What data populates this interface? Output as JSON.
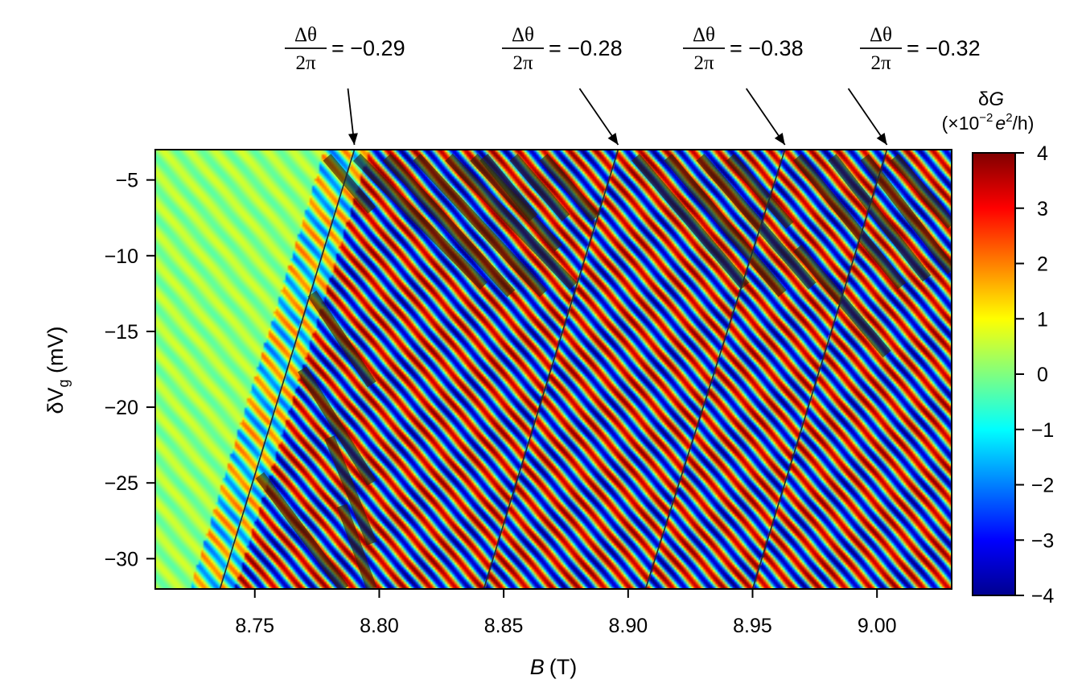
{
  "chart_data": {
    "type": "heatmap",
    "title": "",
    "xlabel_var": "B",
    "xlabel_unit": "(T)",
    "ylabel_prefix": "δV",
    "ylabel_sub": "g",
    "ylabel_unit": " (mV)",
    "xlim": [
      8.71,
      9.03
    ],
    "ylim": [
      -32,
      -3
    ],
    "x_ticks": [
      8.75,
      8.8,
      8.85,
      8.9,
      8.95,
      9.0
    ],
    "x_tick_labels": [
      "8.75",
      "8.80",
      "8.85",
      "8.90",
      "8.95",
      "9.00"
    ],
    "y_ticks": [
      -5,
      -10,
      -15,
      -20,
      -25,
      -30
    ],
    "y_tick_labels": [
      "−5",
      "−10",
      "−15",
      "−20",
      "−25",
      "−30"
    ],
    "colorbar": {
      "title_prefix": "δ",
      "title_var": "G",
      "unit_open": "(×10",
      "unit_exp": "−2",
      "unit_e": "e",
      "unit_e_exp": "2",
      "unit_tail": "/h)",
      "range": [
        -4,
        4
      ],
      "ticks": [
        4,
        3,
        2,
        1,
        0,
        -1,
        -2,
        -3,
        -4
      ],
      "tick_labels": [
        "4",
        "3",
        "2",
        "1",
        "0",
        "−1",
        "−2",
        "−3",
        "−4"
      ],
      "colormap": "jet"
    },
    "fringe_slope_mV_per_T": -190,
    "fringe_period_T": 0.0104,
    "phase_slips": [
      {
        "top": [
          8.79,
          -3
        ],
        "bottom": [
          8.736,
          -32
        ],
        "label": "= −0.29"
      },
      {
        "top": [
          8.896,
          -3
        ],
        "bottom": [
          8.842,
          -32
        ],
        "label": "= −0.28"
      },
      {
        "top": [
          8.963,
          -3
        ],
        "bottom": [
          8.907,
          -32
        ],
        "label": "= −0.38"
      },
      {
        "top": [
          9.004,
          -3
        ],
        "bottom": [
          8.95,
          -32
        ],
        "label": "= −0.32"
      }
    ],
    "annotation_fraction_num": "Δθ",
    "annotation_fraction_den": "2π",
    "overlay_bars": [
      {
        "x1": 8.779,
        "y1": -3.5,
        "x2": 8.797,
        "y2": -7.0
      },
      {
        "x1": 8.773,
        "y1": -12.5,
        "x2": 8.797,
        "y2": -18.5
      },
      {
        "x1": 8.769,
        "y1": -17.5,
        "x2": 8.797,
        "y2": -25.0
      },
      {
        "x1": 8.78,
        "y1": -22.0,
        "x2": 8.797,
        "y2": -29.0
      },
      {
        "x1": 8.785,
        "y1": -26.5,
        "x2": 8.797,
        "y2": -32.0
      },
      {
        "x1": 8.791,
        "y1": -3.5,
        "x2": 8.842,
        "y2": -12.0
      },
      {
        "x1": 8.803,
        "y1": -3.5,
        "x2": 8.853,
        "y2": -12.5
      },
      {
        "x1": 8.815,
        "y1": -3.5,
        "x2": 8.866,
        "y2": -12.5
      },
      {
        "x1": 8.828,
        "y1": -3.5,
        "x2": 8.878,
        "y2": -12.0
      },
      {
        "x1": 8.838,
        "y1": -3.5,
        "x2": 8.872,
        "y2": -9.5
      },
      {
        "x1": 8.842,
        "y1": -3.5,
        "x2": 8.862,
        "y2": -7.5
      },
      {
        "x1": 8.854,
        "y1": -3.5,
        "x2": 8.875,
        "y2": -7.5
      },
      {
        "x1": 8.866,
        "y1": -3.5,
        "x2": 8.887,
        "y2": -7.5
      },
      {
        "x1": 8.903,
        "y1": -3.5,
        "x2": 8.947,
        "y2": -12.0
      },
      {
        "x1": 8.916,
        "y1": -3.5,
        "x2": 8.962,
        "y2": -12.5
      },
      {
        "x1": 8.929,
        "y1": -3.5,
        "x2": 8.974,
        "y2": -12.0
      },
      {
        "x1": 8.941,
        "y1": -3.5,
        "x2": 8.965,
        "y2": -8.0
      },
      {
        "x1": 8.968,
        "y1": -3.5,
        "x2": 9.01,
        "y2": -12.0
      },
      {
        "x1": 8.982,
        "y1": -3.5,
        "x2": 9.02,
        "y2": -11.5
      },
      {
        "x1": 8.995,
        "y1": -3.5,
        "x2": 9.03,
        "y2": -11.0
      },
      {
        "x1": 9.007,
        "y1": -3.5,
        "x2": 9.03,
        "y2": -8.0
      },
      {
        "x1": 8.968,
        "y1": -9.5,
        "x2": 9.004,
        "y2": -16.5
      },
      {
        "x1": 8.752,
        "y1": -24.5,
        "x2": 8.786,
        "y2": -32.0
      }
    ]
  }
}
